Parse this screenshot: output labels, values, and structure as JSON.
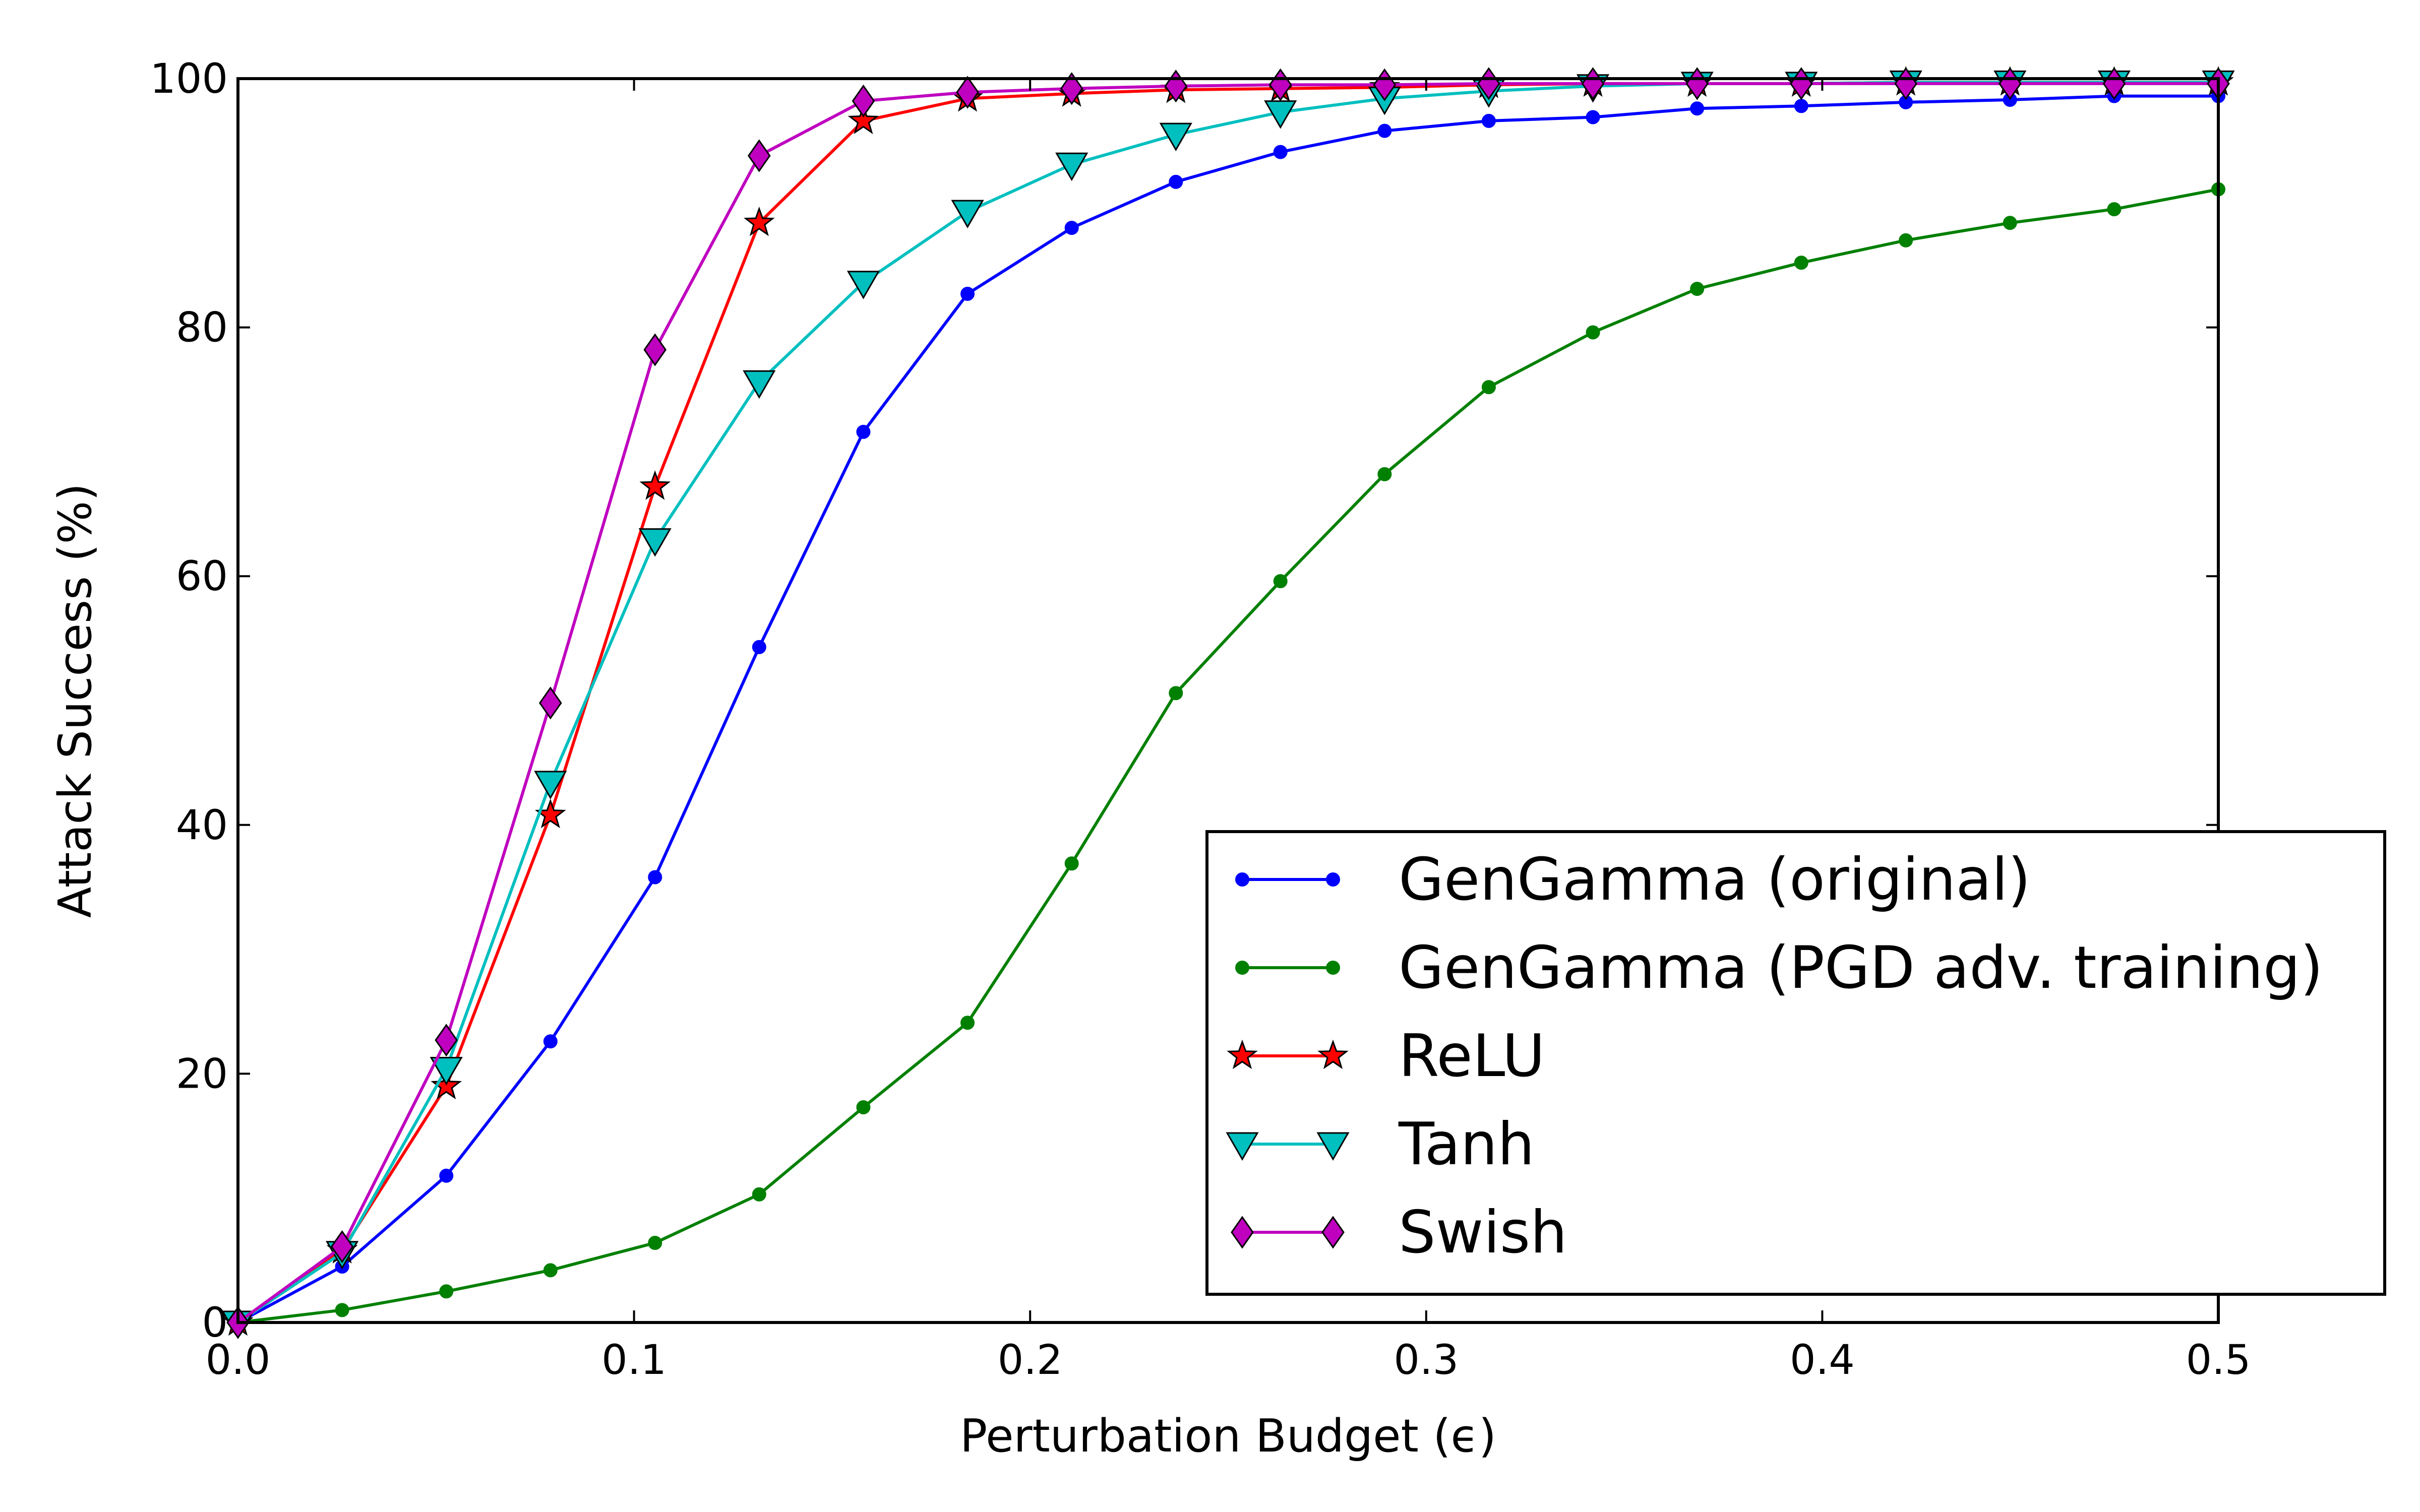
{
  "chart_data": {
    "type": "line",
    "xlabel": "Perturbation Budget (ϵ)",
    "ylabel": "Attack Success (%)",
    "xlim": [
      0.0,
      0.5
    ],
    "ylim": [
      0,
      100
    ],
    "xticks": [
      "0.0",
      "0.1",
      "0.2",
      "0.3",
      "0.4",
      "0.5"
    ],
    "yticks": [
      "0",
      "20",
      "40",
      "60",
      "80",
      "100"
    ],
    "grid": false,
    "legend_position": "lower-right",
    "x": [
      0.0,
      0.0263,
      0.0526,
      0.0789,
      0.1053,
      0.1316,
      0.1579,
      0.1842,
      0.2105,
      0.2368,
      0.2632,
      0.2895,
      0.3158,
      0.3421,
      0.3684,
      0.3947,
      0.4211,
      0.4474,
      0.4737,
      0.5
    ],
    "series": [
      {
        "name": "GenGamma (original)",
        "color": "#0000ff",
        "marker": "dot",
        "values": [
          0,
          4.5,
          11.8,
          22.6,
          35.8,
          54.3,
          71.6,
          82.7,
          88.0,
          91.7,
          94.1,
          95.8,
          96.6,
          96.9,
          97.6,
          97.8,
          98.1,
          98.3,
          98.6,
          98.6
        ]
      },
      {
        "name": "GenGamma (PGD adv. training)",
        "color": "#008000",
        "marker": "dot",
        "values": [
          0,
          1.0,
          2.5,
          4.2,
          6.4,
          10.3,
          17.3,
          24.1,
          36.9,
          50.6,
          59.6,
          68.2,
          75.2,
          79.6,
          83.1,
          85.2,
          87.0,
          88.4,
          89.5,
          91.1
        ]
      },
      {
        "name": "ReLU",
        "color": "#ff0000",
        "marker": "star",
        "values": [
          0,
          5.8,
          19.0,
          40.8,
          67.2,
          88.4,
          96.6,
          98.4,
          98.8,
          99.1,
          99.2,
          99.3,
          99.5,
          99.6,
          99.6,
          99.6,
          99.7,
          99.7,
          99.7,
          99.7
        ]
      },
      {
        "name": "Tanh",
        "color": "#00bfbf",
        "marker": "triangle-down",
        "values": [
          0,
          5.6,
          20.4,
          43.4,
          62.9,
          75.6,
          83.6,
          89.3,
          93.1,
          95.5,
          97.3,
          98.4,
          99.0,
          99.4,
          99.6,
          99.6,
          99.7,
          99.7,
          99.7,
          99.7
        ]
      },
      {
        "name": "Swish",
        "color": "#bf00bf",
        "marker": "diamond",
        "values": [
          0,
          6.1,
          22.7,
          49.8,
          78.2,
          93.8,
          98.2,
          98.9,
          99.2,
          99.4,
          99.5,
          99.5,
          99.6,
          99.6,
          99.6,
          99.6,
          99.6,
          99.6,
          99.6,
          99.6
        ]
      }
    ]
  }
}
